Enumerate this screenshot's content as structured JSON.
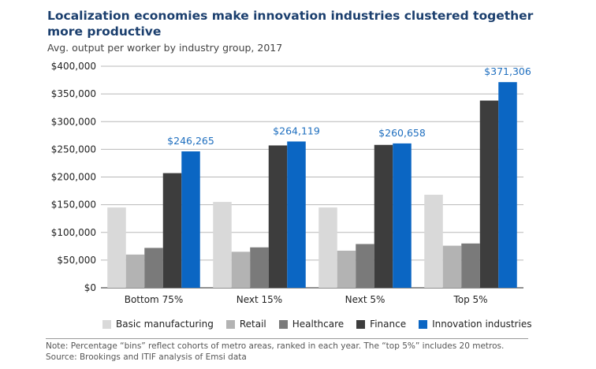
{
  "title": "Localization economies make innovation industries clustered together more productive",
  "subtitle": "Avg. output per worker by industry group, 2017",
  "chart_data": {
    "type": "bar",
    "title": "Localization economies make innovation industries clustered together more productive",
    "subtitle": "Avg. output per worker by industry group, 2017",
    "xlabel": "",
    "ylabel": "",
    "ylim": [
      0,
      400000
    ],
    "ytick_values": [
      0,
      50000,
      100000,
      150000,
      200000,
      250000,
      300000,
      350000,
      400000
    ],
    "ytick_labels": [
      "$0",
      "$50,000",
      "$100,000",
      "$150,000",
      "$200,000",
      "$250,000",
      "$300,000",
      "$350,000",
      "$400,000"
    ],
    "grid": true,
    "legend_position": "bottom",
    "categories": [
      "Bottom 75%",
      "Next 15%",
      "Next 5%",
      "Top 5%"
    ],
    "series": [
      {
        "name": "Basic manufacturing",
        "color": "#d9d9d9",
        "values": [
          145000,
          155000,
          145000,
          168000
        ]
      },
      {
        "name": "Retail",
        "color": "#b3b3b3",
        "values": [
          60000,
          65000,
          67000,
          76000
        ]
      },
      {
        "name": "Healthcare",
        "color": "#7a7a7a",
        "values": [
          72000,
          73000,
          79000,
          80000
        ]
      },
      {
        "name": "Finance",
        "color": "#3d3d3d",
        "values": [
          207000,
          257000,
          258000,
          338000
        ]
      },
      {
        "name": "Innovation industries",
        "color": "#0b66c3",
        "values": [
          246265,
          264119,
          260658,
          371306
        ]
      }
    ],
    "data_labels": [
      "$246,265",
      "$264,119",
      "$260,658",
      "$371,306"
    ]
  },
  "note": "Note: Percentage “bins” reflect cohorts of metro areas, ranked in each year. The “top 5%” includes 20 metros.",
  "source": "Source: Brookings and ITIF analysis of Emsi data"
}
